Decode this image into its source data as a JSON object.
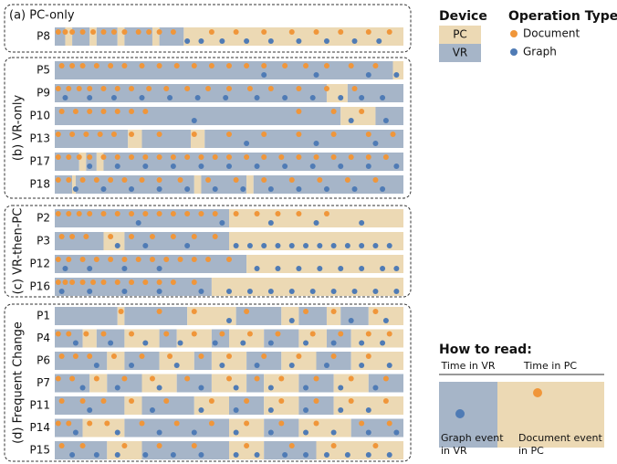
{
  "chart_data": {
    "type": "timeline",
    "xlim": [
      0,
      100
    ],
    "legend": {
      "device_title": "Device",
      "devices": [
        {
          "name": "PC",
          "color": "#ecd9b4"
        },
        {
          "name": "VR",
          "color": "#a6b5c8"
        }
      ],
      "operation_title": "Operation Type",
      "operations": [
        {
          "name": "Document",
          "color": "#f0963a"
        },
        {
          "name": "Graph",
          "color": "#4f7bb5"
        }
      ]
    },
    "how_to_read": {
      "title": "How to read:",
      "vr_label": "Time in VR",
      "pc_label": "Time in PC",
      "graph_label": "Graph event\nin VR",
      "document_label": "Document event\nin PC"
    },
    "groups": [
      {
        "label": "(a) PC-only",
        "rows": [
          {
            "name": "P8",
            "start_device": "VR",
            "boundaries": [
              0,
              3,
              5,
              10,
              12,
              18,
              20,
              28,
              30,
              37,
              100
            ],
            "events": [
              [
                1,
                3,
                5,
                8,
                11,
                14,
                17,
                20,
                24,
                27,
                30,
                34,
                45,
                52,
                60,
                68,
                75,
                82,
                90,
                96
              ],
              [
                38,
                42,
                48,
                55,
                62,
                70,
                78,
                86,
                93
              ]
            ]
          }
        ]
      },
      {
        "label": "(b) VR-only",
        "rows": [
          {
            "name": "P5",
            "start_device": "VR",
            "boundaries": [
              0,
              97,
              100
            ],
            "events": [
              [
                2,
                5,
                8,
                12,
                16,
                20,
                25,
                30,
                35,
                40,
                45,
                50,
                55,
                60,
                66,
                72,
                78,
                85,
                92
              ],
              [
                60,
                75,
                90,
                98
              ]
            ]
          },
          {
            "name": "P9",
            "start_device": "VR",
            "boundaries": [
              0,
              78,
              84,
              100
            ],
            "events": [
              [
                1,
                4,
                7,
                10,
                14,
                18,
                22,
                27,
                32,
                38,
                44,
                50,
                56,
                62,
                70,
                78,
                86
              ],
              [
                3,
                10,
                17,
                25,
                33,
                41,
                49,
                58,
                66,
                74,
                82,
                88,
                94
              ]
            ]
          },
          {
            "name": "P10",
            "start_device": "VR",
            "boundaries": [
              0,
              82,
              92,
              100
            ],
            "events": [
              [
                2,
                6,
                10,
                14,
                18,
                22,
                26,
                70,
                80,
                88
              ],
              [
                40,
                85,
                95
              ]
            ]
          },
          {
            "name": "P13",
            "start_device": "VR",
            "boundaries": [
              0,
              21,
              25,
              39,
              43,
              100
            ],
            "events": [
              [
                1,
                5,
                9,
                13,
                17,
                22,
                30,
                40,
                50,
                60,
                70,
                80,
                90,
                97
              ],
              [
                55,
                75,
                92
              ]
            ]
          },
          {
            "name": "P17",
            "start_device": "VR",
            "boundaries": [
              0,
              7,
              9,
              12,
              14,
              100
            ],
            "events": [
              [
                1,
                4,
                7,
                10,
                14,
                18,
                22,
                26,
                30,
                34,
                38,
                42,
                46,
                50,
                55,
                60,
                65,
                70,
                75,
                80,
                85,
                90,
                95
              ],
              [
                10,
                18,
                26,
                34,
                42,
                50,
                58,
                66,
                74,
                82,
                90,
                98
              ]
            ]
          },
          {
            "name": "P18",
            "start_device": "VR",
            "boundaries": [
              0,
              5,
              6,
              40,
              42,
              55,
              57,
              100
            ],
            "events": [
              [
                1,
                4,
                8,
                12,
                16,
                20,
                25,
                30,
                36,
                44,
                52,
                60,
                68,
                76,
                84,
                92
              ],
              [
                6,
                14,
                22,
                30,
                38,
                46,
                54,
                62,
                70,
                78,
                86,
                94
              ]
            ]
          }
        ]
      },
      {
        "label": "(c) VR-then-PC",
        "rows": [
          {
            "name": "P2",
            "start_device": "VR",
            "boundaries": [
              0,
              50,
              100
            ],
            "events": [
              [
                1,
                4,
                7,
                10,
                14,
                18,
                22,
                26,
                30,
                34,
                38,
                42,
                46,
                52,
                58,
                64,
                70,
                78
              ],
              [
                24,
                48,
                62,
                75,
                88
              ]
            ]
          },
          {
            "name": "P3",
            "start_device": "VR",
            "boundaries": [
              0,
              14,
              20,
              50,
              100
            ],
            "events": [
              [
                2,
                5,
                9,
                16,
                22,
                28,
                34,
                40,
                46
              ],
              [
                18,
                26,
                38,
                52,
                56,
                60,
                64,
                68,
                72,
                76,
                80,
                84,
                88,
                92,
                96
              ]
            ]
          },
          {
            "name": "P12",
            "start_device": "VR",
            "boundaries": [
              0,
              55,
              100
            ],
            "events": [
              [
                1,
                4,
                8,
                12,
                16,
                20,
                24,
                28,
                32,
                36,
                40,
                44,
                50
              ],
              [
                3,
                10,
                20,
                30,
                58,
                64,
                70,
                76,
                82,
                88,
                94,
                98
              ]
            ]
          },
          {
            "name": "P16",
            "start_device": "VR",
            "boundaries": [
              0,
              45,
              100
            ],
            "events": [
              [
                1,
                3,
                5,
                8,
                11,
                14,
                18,
                22,
                26,
                30,
                34,
                40
              ],
              [
                2,
                10,
                20,
                30,
                42,
                50,
                56,
                62,
                68,
                74,
                80,
                86,
                92,
                98
              ]
            ]
          }
        ]
      },
      {
        "label": "(d) Frequent Change",
        "rows": [
          {
            "name": "P1",
            "start_device": "VR",
            "boundaries": [
              0,
              18,
              20,
              38,
              52,
              65,
              70,
              78,
              82,
              90,
              100
            ],
            "events": [
              [
                19,
                30,
                40,
                55,
                72,
                80,
                92
              ],
              [
                50,
                68,
                85,
                95
              ]
            ]
          },
          {
            "name": "P4",
            "start_device": "VR",
            "boundaries": [
              0,
              8,
              12,
              20,
              30,
              35,
              45,
              50,
              60,
              70,
              78,
              85,
              100
            ],
            "events": [
              [
                1,
                4,
                9,
                14,
                22,
                32,
                40,
                48,
                56,
                64,
                74,
                82,
                90,
                96
              ],
              [
                6,
                16,
                26,
                36,
                46,
                54,
                62,
                72,
                80,
                88,
                94
              ]
            ]
          },
          {
            "name": "P6",
            "start_device": "VR",
            "boundaries": [
              0,
              15,
              20,
              30,
              40,
              45,
              55,
              65,
              75,
              85,
              100
            ],
            "events": [
              [
                2,
                6,
                10,
                17,
                25,
                33,
                42,
                50,
                60,
                70,
                80,
                90
              ],
              [
                12,
                22,
                35,
                48,
                58,
                68,
                78,
                88,
                96
              ]
            ]
          },
          {
            "name": "P7",
            "start_device": "VR",
            "boundaries": [
              0,
              10,
              15,
              25,
              35,
              45,
              55,
              60,
              70,
              80,
              90,
              100
            ],
            "events": [
              [
                1,
                5,
                12,
                20,
                28,
                38,
                50,
                58,
                65,
                75,
                85,
                95
              ],
              [
                8,
                18,
                30,
                42,
                52,
                62,
                72,
                82,
                92
              ]
            ]
          },
          {
            "name": "P11",
            "start_device": "VR",
            "boundaries": [
              0,
              20,
              25,
              40,
              50,
              60,
              70,
              80,
              100
            ],
            "events": [
              [
                2,
                8,
                14,
                22,
                32,
                45,
                55,
                65,
                75,
                85,
                95
              ],
              [
                10,
                28,
                42,
                52,
                62,
                72,
                82,
                90
              ]
            ]
          },
          {
            "name": "P14",
            "start_device": "VR",
            "boundaries": [
              0,
              8,
              20,
              50,
              60,
              70,
              85,
              100
            ],
            "events": [
              [
                1,
                4,
                10,
                15,
                25,
                35,
                45,
                55,
                65,
                75,
                88,
                96
              ],
              [
                6,
                18,
                30,
                40,
                52,
                62,
                72,
                80,
                90,
                98
              ]
            ]
          },
          {
            "name": "P15",
            "start_device": "VR",
            "boundaries": [
              0,
              15,
              25,
              50,
              60,
              75,
              100
            ],
            "events": [
              [
                2,
                8,
                20,
                30,
                40,
                55,
                68,
                80,
                92
              ],
              [
                5,
                12,
                18,
                26,
                34,
                42,
                52,
                58,
                66,
                72,
                78,
                84,
                90,
                96
              ]
            ]
          }
        ]
      }
    ]
  }
}
